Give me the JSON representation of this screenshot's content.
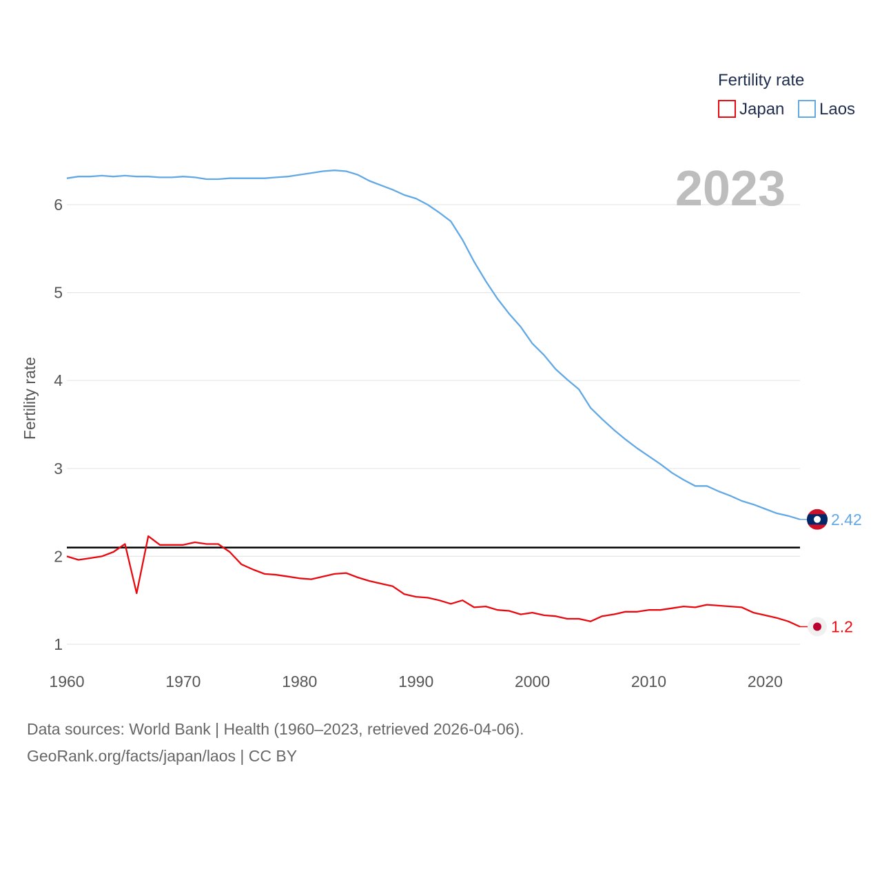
{
  "chart_data": {
    "type": "line",
    "year_label": "2023",
    "ylabel": "Fertility rate",
    "xlabel": "",
    "xlim": [
      1960,
      2023
    ],
    "ylim": [
      1,
      6.5
    ],
    "x_ticks": [
      1960,
      1970,
      1980,
      1990,
      2000,
      2010,
      2020
    ],
    "x_tick_labels": [
      "1960",
      "1970",
      "1980",
      "1990",
      "2000",
      "2010",
      "2020"
    ],
    "y_ticks": [
      1,
      2,
      3,
      4,
      5,
      6
    ],
    "y_tick_labels": [
      "1",
      "2",
      "3",
      "4",
      "5",
      "6"
    ],
    "reference_line": {
      "y": 2.1,
      "color": "#000000"
    },
    "legend": {
      "title": "Fertility rate",
      "position": "top-right"
    },
    "series": [
      {
        "name": "Japan",
        "color": "#e8080e",
        "end_label": "1.2",
        "years": [
          1960,
          1961,
          1962,
          1963,
          1964,
          1965,
          1966,
          1967,
          1968,
          1969,
          1970,
          1971,
          1972,
          1973,
          1974,
          1975,
          1976,
          1977,
          1978,
          1979,
          1980,
          1981,
          1982,
          1983,
          1984,
          1985,
          1986,
          1987,
          1988,
          1989,
          1990,
          1991,
          1992,
          1993,
          1994,
          1995,
          1996,
          1997,
          1998,
          1999,
          2000,
          2001,
          2002,
          2003,
          2004,
          2005,
          2006,
          2007,
          2008,
          2009,
          2010,
          2011,
          2012,
          2013,
          2014,
          2015,
          2016,
          2017,
          2018,
          2019,
          2020,
          2021,
          2022,
          2023
        ],
        "values": [
          2.0,
          1.96,
          1.98,
          2.0,
          2.05,
          2.14,
          1.58,
          2.23,
          2.13,
          2.13,
          2.13,
          2.16,
          2.14,
          2.14,
          2.05,
          1.91,
          1.85,
          1.8,
          1.79,
          1.77,
          1.75,
          1.74,
          1.77,
          1.8,
          1.81,
          1.76,
          1.72,
          1.69,
          1.66,
          1.57,
          1.54,
          1.53,
          1.5,
          1.46,
          1.5,
          1.42,
          1.43,
          1.39,
          1.38,
          1.34,
          1.36,
          1.33,
          1.32,
          1.29,
          1.29,
          1.26,
          1.32,
          1.34,
          1.37,
          1.37,
          1.39,
          1.39,
          1.41,
          1.43,
          1.42,
          1.45,
          1.44,
          1.43,
          1.42,
          1.36,
          1.33,
          1.3,
          1.26,
          1.2
        ]
      },
      {
        "name": "Laos",
        "color": "#62a8e5",
        "end_label": "2.42",
        "years": [
          1960,
          1961,
          1962,
          1963,
          1964,
          1965,
          1966,
          1967,
          1968,
          1969,
          1970,
          1971,
          1972,
          1973,
          1974,
          1975,
          1976,
          1977,
          1978,
          1979,
          1980,
          1981,
          1982,
          1983,
          1984,
          1985,
          1986,
          1987,
          1988,
          1989,
          1990,
          1991,
          1992,
          1993,
          1994,
          1995,
          1996,
          1997,
          1998,
          1999,
          2000,
          2001,
          2002,
          2003,
          2004,
          2005,
          2006,
          2007,
          2008,
          2009,
          2010,
          2011,
          2012,
          2013,
          2014,
          2015,
          2016,
          2017,
          2018,
          2019,
          2020,
          2021,
          2022,
          2023
        ],
        "values": [
          6.3,
          6.32,
          6.32,
          6.33,
          6.32,
          6.33,
          6.32,
          6.32,
          6.31,
          6.31,
          6.32,
          6.31,
          6.29,
          6.29,
          6.3,
          6.3,
          6.3,
          6.3,
          6.31,
          6.32,
          6.34,
          6.36,
          6.38,
          6.39,
          6.38,
          6.34,
          6.27,
          6.22,
          6.17,
          6.11,
          6.07,
          6.0,
          5.91,
          5.81,
          5.6,
          5.35,
          5.13,
          4.93,
          4.76,
          4.61,
          4.42,
          4.29,
          4.13,
          4.01,
          3.9,
          3.69,
          3.56,
          3.44,
          3.33,
          3.23,
          3.14,
          3.05,
          2.95,
          2.87,
          2.8,
          2.8,
          2.74,
          2.69,
          2.63,
          2.59,
          2.54,
          2.49,
          2.46,
          2.42
        ]
      }
    ]
  },
  "footer": {
    "line1": "Data sources: World Bank | Health (1960–2023, retrieved 2026-04-06).",
    "line2": "GeoRank.org/facts/japan/laos | CC BY"
  }
}
